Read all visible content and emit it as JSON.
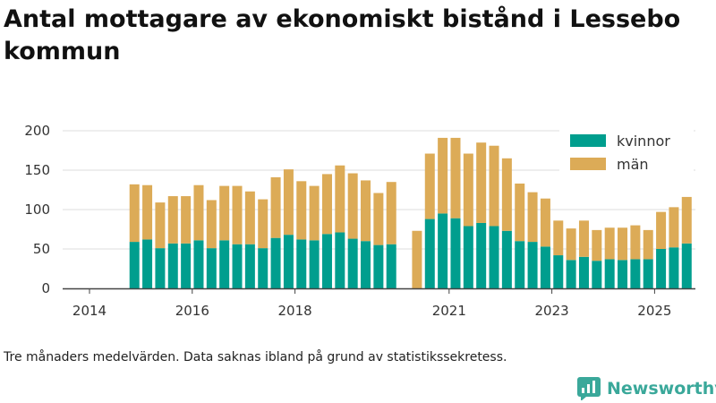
{
  "title": "Antal mottagare av ekonomiskt bistånd i Lessebo kommun",
  "note": "Tre månaders medelvärden. Data saknas ibland på grund av statistikssekretess.",
  "brand": {
    "name": "Newsworthy",
    "color": "#3aa89a"
  },
  "colors": {
    "kvinnor": "#009e8e",
    "man": "#dcab57",
    "axis": "#444444",
    "grid": "#dddddd"
  },
  "chart_data": {
    "type": "bar",
    "stacked": true,
    "title": "Antal mottagare av ekonomiskt bistånd i Lessebo kommun",
    "xlabel": "",
    "ylabel": "",
    "ylim": [
      0,
      200
    ],
    "yticks": [
      "0",
      "50",
      "100",
      "150",
      "200"
    ],
    "xticks": [
      {
        "label": "2014",
        "period": 0
      },
      {
        "label": "2016",
        "period": 8
      },
      {
        "label": "2018",
        "period": 16
      },
      {
        "label": "2021",
        "period": 28
      },
      {
        "label": "2023",
        "period": 36
      },
      {
        "label": "2025",
        "period": 44
      }
    ],
    "grid": true,
    "legend_position": "top-right",
    "x_start": "2014-Q1",
    "series": [
      {
        "name": "kvinnor",
        "values": [
          null,
          null,
          59,
          62,
          51,
          57,
          57,
          61,
          51,
          61,
          56,
          56,
          51,
          64,
          68,
          62,
          61,
          69,
          71,
          63,
          60,
          55,
          56,
          null,
          null,
          88,
          95,
          89,
          79,
          83,
          79,
          73,
          60,
          59,
          53,
          42,
          36,
          40,
          35,
          37,
          36,
          37,
          37,
          50,
          52,
          57
        ]
      },
      {
        "name": "män",
        "values": [
          null,
          null,
          73,
          69,
          58,
          60,
          60,
          70,
          61,
          69,
          74,
          67,
          62,
          77,
          83,
          74,
          69,
          76,
          85,
          83,
          77,
          66,
          79,
          null,
          73,
          83,
          96,
          102,
          92,
          102,
          102,
          92,
          73,
          63,
          61,
          44,
          40,
          46,
          39,
          40,
          41,
          43,
          37,
          47,
          51,
          59
        ]
      }
    ]
  }
}
